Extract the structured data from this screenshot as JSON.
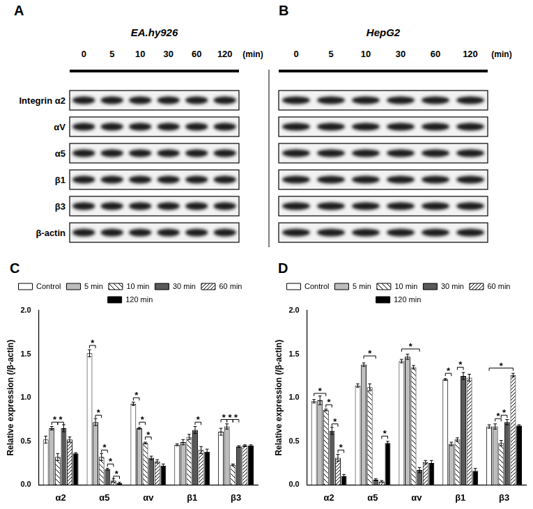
{
  "blots": [
    {
      "panel_label": "A",
      "cell_line": "EA.hy926",
      "time_points": [
        "0",
        "5",
        "10",
        "30",
        "60",
        "120"
      ],
      "time_unit": "(min)",
      "proteins": [
        "Integrin α2",
        "αV",
        "α5",
        "β1",
        "β3",
        "β-actin"
      ]
    },
    {
      "panel_label": "B",
      "cell_line": "HepG2",
      "time_points": [
        "0",
        "5",
        "10",
        "30",
        "60",
        "120"
      ],
      "time_unit": "(min)"
    }
  ],
  "chart_data": [
    {
      "panel_label": "C",
      "type": "bar",
      "y_label": "Relative expression (/β-actin)",
      "categories": [
        "α2",
        "α5",
        "αv",
        "β1",
        "β3"
      ],
      "series": [
        {
          "name": "Control",
          "color": "#ffffff",
          "values": [
            0.52,
            1.51,
            0.93,
            0.46,
            0.61
          ],
          "errors": [
            0.04,
            0.04,
            0.02,
            0.01,
            0.04
          ]
        },
        {
          "name": "5 min",
          "color": "#bdbdbd",
          "values": [
            0.65,
            0.72,
            0.65,
            0.49,
            0.67
          ],
          "errors": [
            0.02,
            0.04,
            0.01,
            0.03,
            0.03
          ]
        },
        {
          "name": "10 min",
          "color": "#ffffff",
          "line_style": "hatch_back",
          "values": [
            0.32,
            0.32,
            0.48,
            0.55,
            0.23
          ],
          "errors": [
            0.04,
            0.04,
            0.01,
            0.03,
            0.01
          ]
        },
        {
          "name": "30 min",
          "color": "#595959",
          "values": [
            0.65,
            0.18,
            0.31,
            0.63,
            0.44
          ],
          "errors": [
            0.04,
            0.01,
            0.02,
            0.04,
            0.01
          ]
        },
        {
          "name": "60 min",
          "color": "#ffffff",
          "line_style": "hatch_forward",
          "values": [
            0.52,
            0.05,
            0.27,
            0.4,
            0.45
          ],
          "errors": [
            0.03,
            0.02,
            0.02,
            0.04,
            0.01
          ]
        },
        {
          "name": "120 min",
          "color": "#000000",
          "values": [
            0.36,
            0.02,
            0.22,
            0.38,
            0.45
          ],
          "errors": [
            0.01,
            0.01,
            0.02,
            0.03,
            0.01
          ]
        }
      ],
      "ylim": [
        0,
        2
      ],
      "yticks": [
        {
          "value": 0,
          "label": "0.0"
        },
        {
          "value": 0.5,
          "label": "0.5"
        },
        {
          "value": 1,
          "label": "1.0"
        },
        {
          "value": 1.5,
          "label": "1.5"
        },
        {
          "value": 2,
          "label": "2.0"
        }
      ],
      "grid": false,
      "legend": "top",
      "annotations": [
        {
          "text": "*",
          "category": "α2",
          "from": "5 min",
          "to": "10 min",
          "y": 0.72
        },
        {
          "text": "*",
          "category": "α2",
          "from": "10 min",
          "to": "30 min",
          "y": 0.72
        },
        {
          "text": "*",
          "category": "α5",
          "from": "Control",
          "to": "5 min",
          "y": 1.6
        },
        {
          "text": "*",
          "category": "α5",
          "from": "5 min",
          "to": "10 min",
          "y": 0.8
        },
        {
          "text": "*",
          "category": "α5",
          "from": "10 min",
          "to": "30 min",
          "y": 0.4
        },
        {
          "text": "*",
          "category": "α5",
          "from": "30 min",
          "to": "60 min",
          "y": 0.24
        },
        {
          "text": "*",
          "category": "α5",
          "from": "60 min",
          "to": "120 min",
          "y": 0.1
        },
        {
          "text": "*",
          "category": "αv",
          "from": "Control",
          "to": "5 min",
          "y": 1.0
        },
        {
          "text": "*",
          "category": "αv",
          "from": "5 min",
          "to": "10 min",
          "y": 0.72
        },
        {
          "text": "*",
          "category": "αv",
          "from": "10 min",
          "to": "30 min",
          "y": 0.55
        },
        {
          "text": "*",
          "category": "β1",
          "from": "30 min",
          "to": "60 min",
          "y": 0.72
        },
        {
          "text": "*",
          "category": "β3",
          "from": "Control",
          "to": "5 min",
          "y": 0.75
        },
        {
          "text": "*",
          "category": "β3",
          "from": "5 min",
          "to": "10 min",
          "y": 0.75
        },
        {
          "text": "*",
          "category": "β3",
          "from": "10 min",
          "to": "30 min",
          "y": 0.75
        }
      ]
    },
    {
      "panel_label": "D",
      "type": "bar",
      "y_label": "Relative expression (/β-actin)",
      "categories": [
        "α2",
        "α5",
        "αv",
        "β1",
        "β3"
      ],
      "series": [
        {
          "name": "Control",
          "color": "#ffffff",
          "values": [
            0.96,
            1.14,
            1.42,
            1.21,
            0.67
          ],
          "errors": [
            0.02,
            0.02,
            0.02,
            0.01,
            0.02
          ]
        },
        {
          "name": "5 min",
          "color": "#bdbdbd",
          "values": [
            0.97,
            1.38,
            1.47,
            0.47,
            0.67
          ],
          "errors": [
            0.05,
            0.02,
            0.03,
            0.02,
            0.03
          ]
        },
        {
          "name": "10 min",
          "color": "#ffffff",
          "line_style": "hatch_back",
          "values": [
            0.86,
            1.12,
            1.35,
            0.52,
            0.48
          ],
          "errors": [
            0.01,
            0.04,
            0.02,
            0.02,
            0.03
          ]
        },
        {
          "name": "30 min",
          "color": "#595959",
          "values": [
            0.62,
            0.06,
            0.17,
            1.25,
            0.72
          ],
          "errors": [
            0.04,
            0.01,
            0.03,
            0.04,
            0.03
          ]
        },
        {
          "name": "60 min",
          "color": "#ffffff",
          "line_style": "hatch_forward",
          "values": [
            0.31,
            0.04,
            0.26,
            1.23,
            1.26
          ],
          "errors": [
            0.04,
            0.01,
            0.02,
            0.04,
            0.02
          ]
        },
        {
          "name": "120 min",
          "color": "#000000",
          "values": [
            0.1,
            0.48,
            0.25,
            0.16,
            0.68
          ],
          "errors": [
            0.02,
            0.02,
            0.03,
            0.03,
            0.01
          ]
        }
      ],
      "ylim": [
        0,
        2
      ],
      "yticks": [
        {
          "value": 0,
          "label": "0.0"
        },
        {
          "value": 0.5,
          "label": "0.5"
        },
        {
          "value": 1,
          "label": "1.0"
        },
        {
          "value": 1.5,
          "label": "1.5"
        },
        {
          "value": 2,
          "label": "2.0"
        }
      ],
      "grid": false,
      "legend": "top",
      "annotations": [
        {
          "text": "*",
          "category": "α2",
          "from": "Control",
          "to": "10 min",
          "y": 1.05
        },
        {
          "text": "*",
          "category": "α2",
          "from": "10 min",
          "to": "30 min",
          "y": 0.92
        },
        {
          "text": "*",
          "category": "α2",
          "from": "30 min",
          "to": "60 min",
          "y": 0.7
        },
        {
          "text": "*",
          "category": "α2",
          "from": "60 min",
          "to": "120 min",
          "y": 0.4
        },
        {
          "text": "*",
          "category": "α5",
          "from": "5 min",
          "to": "30 min",
          "y": 1.48
        },
        {
          "text": "*",
          "category": "α5",
          "from": "60 min",
          "to": "120 min",
          "y": 0.56
        },
        {
          "text": "*",
          "category": "αv",
          "from": "Control",
          "to": "30 min",
          "y": 1.56
        },
        {
          "text": "*",
          "category": "β1",
          "from": "Control",
          "to": "5 min",
          "y": 1.28
        },
        {
          "text": "*",
          "category": "β1",
          "from": "10 min",
          "to": "30 min",
          "y": 1.35
        },
        {
          "text": "*",
          "category": "β3",
          "from": "5 min",
          "to": "10 min",
          "y": 0.76
        },
        {
          "text": "*",
          "category": "β3",
          "from": "10 min",
          "to": "30 min",
          "y": 0.8
        },
        {
          "text": "*",
          "category": "β3",
          "from": "Control",
          "to": "60 min",
          "y": 1.34
        }
      ]
    }
  ]
}
